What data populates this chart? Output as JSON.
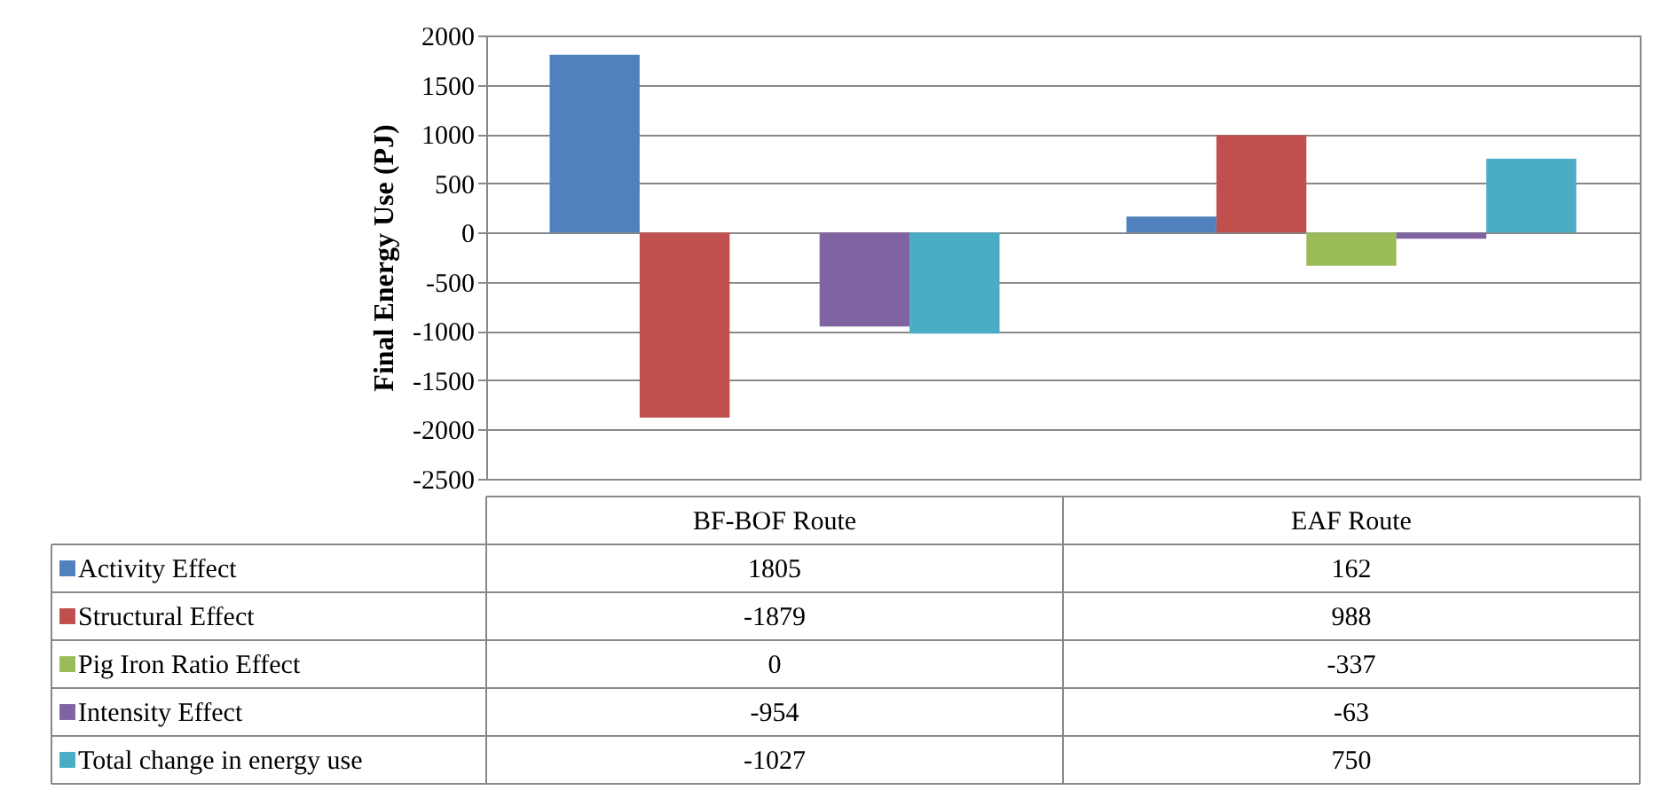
{
  "chart_data": {
    "type": "bar",
    "ylabel": "Final Energy Use (PJ)",
    "categories": [
      "BF-BOF Route",
      "EAF Route"
    ],
    "series": [
      {
        "name": "Activity Effect",
        "color": "#4f81bd",
        "values": [
          1805,
          162
        ]
      },
      {
        "name": "Structural Effect",
        "color": "#c0504d",
        "values": [
          -1879,
          988
        ]
      },
      {
        "name": "Pig Iron Ratio Effect",
        "color": "#9bbb59",
        "values": [
          0,
          -337
        ]
      },
      {
        "name": "Intensity Effect",
        "color": "#8064a2",
        "values": [
          -954,
          -63
        ]
      },
      {
        "name": "Total change in energy use",
        "color": "#4bacc6",
        "values": [
          -1027,
          750
        ]
      }
    ],
    "ylim": [
      -2500,
      2000
    ],
    "yticks": [
      -2500,
      -2000,
      -1500,
      -1000,
      -500,
      0,
      500,
      1000,
      1500,
      2000
    ],
    "grid": "y",
    "legend": "bottom left",
    "data_labels": true
  }
}
